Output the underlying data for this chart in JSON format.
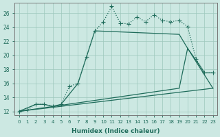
{
  "xlabel": "Humidex (Indice chaleur)",
  "bg_color": "#cce8e2",
  "grid_color": "#9dc8bc",
  "line_color": "#1e6b5a",
  "xlim": [
    -0.5,
    23.5
  ],
  "ylim": [
    11.5,
    27.5
  ],
  "xticks": [
    0,
    1,
    2,
    3,
    4,
    5,
    6,
    7,
    8,
    9,
    10,
    11,
    12,
    13,
    14,
    15,
    16,
    17,
    18,
    19,
    20,
    21,
    22,
    23
  ],
  "yticks": [
    12,
    14,
    16,
    18,
    20,
    22,
    24,
    26
  ],
  "line1_x": [
    0,
    1,
    2,
    3,
    4,
    5,
    6,
    7,
    8,
    9,
    10,
    11,
    12,
    13,
    14,
    15,
    16,
    17,
    18,
    19,
    20,
    21,
    22,
    23
  ],
  "line1_y": [
    12.0,
    12.2,
    13.0,
    13.0,
    12.7,
    13.0,
    15.6,
    16.0,
    19.8,
    23.5,
    24.8,
    27.0,
    24.6,
    24.5,
    25.5,
    24.8,
    25.8,
    25.0,
    24.8,
    25.0,
    24.1,
    19.5,
    17.5,
    17.5
  ],
  "line2_x": [
    0,
    2,
    3,
    4,
    5,
    7,
    9,
    19,
    20,
    21,
    22,
    23
  ],
  "line2_y": [
    12.0,
    13.0,
    13.0,
    12.7,
    13.0,
    16.0,
    23.5,
    23.0,
    21.0,
    19.3,
    17.5,
    17.5
  ],
  "line3_x": [
    0,
    19,
    20,
    23
  ],
  "line3_y": [
    12.0,
    15.3,
    21.0,
    15.3
  ],
  "line4_x": [
    0,
    23
  ],
  "line4_y": [
    12.0,
    15.3
  ],
  "marker_size": 2.2,
  "line_width": 0.9
}
